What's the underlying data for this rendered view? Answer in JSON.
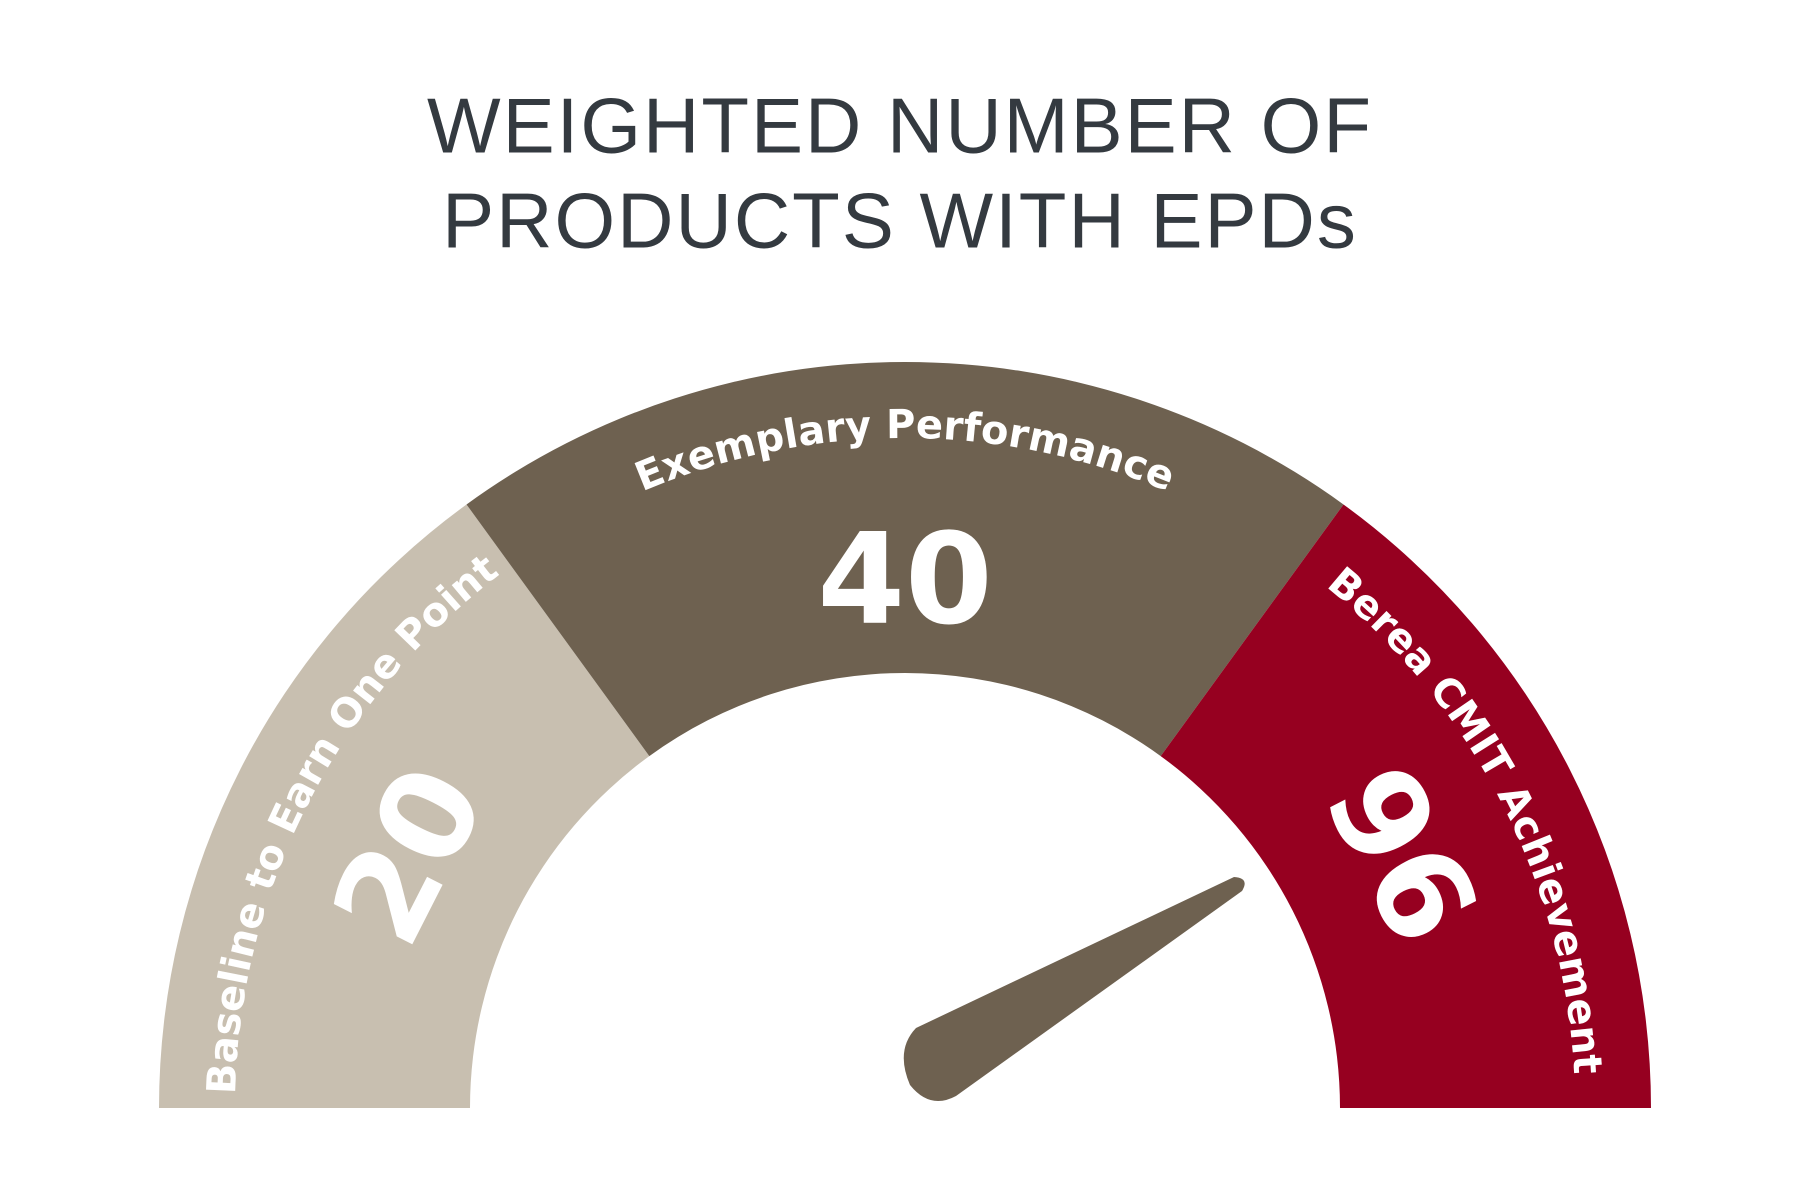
{
  "title": [
    "WEIGHTED NUMBER OF",
    "PRODUCTS WITH EPDs"
  ],
  "segments": [
    {
      "label": "Baseline to Earn One Point",
      "value": "20",
      "color": "#c8bfb0"
    },
    {
      "label": "Exemplary Performance",
      "value": "40",
      "color": "#6e6150"
    },
    {
      "label": "Berea CMIT Achievement",
      "value": "96",
      "color": "#960020"
    }
  ]
}
